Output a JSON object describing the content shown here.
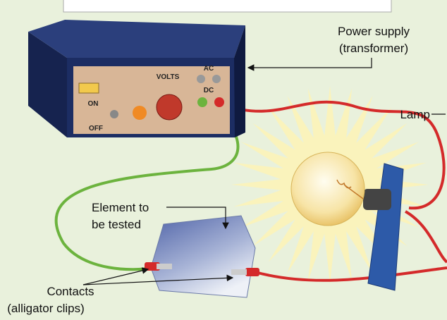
{
  "power_supply": {
    "label": [
      "Power supply",
      "(transformer)"
    ],
    "panel": {
      "volts": "VOLTS",
      "ac": "AC",
      "dc": "DC",
      "on": "ON",
      "off": "OFF"
    }
  },
  "lamp": {
    "label": "Lamp"
  },
  "element": {
    "label": [
      "Element to",
      "be tested"
    ]
  },
  "contacts": {
    "label": [
      "Contacts",
      "(alligator clips)"
    ]
  }
}
